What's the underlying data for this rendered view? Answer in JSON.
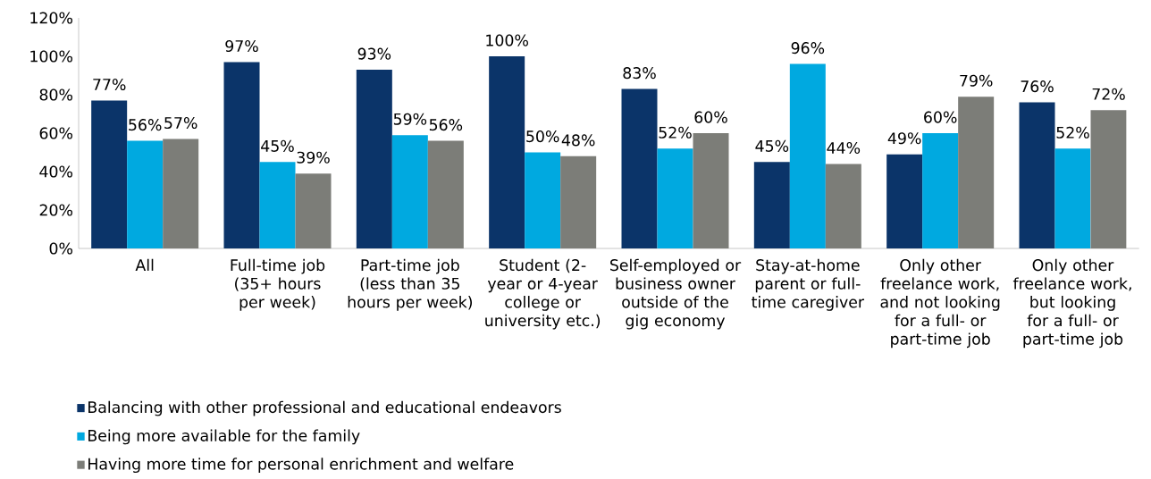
{
  "chart_data": {
    "type": "bar",
    "categories": [
      "All",
      "Full-time job (35+ hours per week)",
      "Part-time job (less than 35 hours per week)",
      "Student (2-year or 4-year college or university etc.)",
      "Self-employed or business owner outside of the gig economy",
      "Stay-at-home parent or full-time caregiver",
      "Only other freelance work, and not looking for a full- or part-time job",
      "Only other freelance work, but looking for a full- or part-time job"
    ],
    "series": [
      {
        "name": "Balancing with other professional and educational endeavors",
        "color": "#0b3469",
        "values": [
          77,
          97,
          93,
          100,
          83,
          45,
          49,
          76
        ],
        "value_labels": [
          "77%",
          "97%",
          "93%",
          "100%",
          "83%",
          "45%",
          "49%",
          "76%"
        ]
      },
      {
        "name": "Being more available for the family",
        "color": "#00a9e0",
        "values": [
          56,
          45,
          59,
          50,
          52,
          96,
          60,
          52
        ],
        "value_labels": [
          "56%",
          "45%",
          "59%",
          "50%",
          "52%",
          "96%",
          "60%",
          "52%"
        ]
      },
      {
        "name": "Having more time for personal enrichment and welfare",
        "color": "#7c7d78",
        "values": [
          57,
          39,
          56,
          48,
          60,
          44,
          79,
          72
        ],
        "value_labels": [
          "57%",
          "39%",
          "56%",
          "48%",
          "60%",
          "44%",
          "79%",
          "72%"
        ]
      }
    ],
    "ylim": [
      0,
      120
    ],
    "yticks": [
      {
        "value": 0,
        "label": "0%"
      },
      {
        "value": 20,
        "label": "20%"
      },
      {
        "value": 40,
        "label": "40%"
      },
      {
        "value": 60,
        "label": "60%"
      },
      {
        "value": 80,
        "label": "80%"
      },
      {
        "value": 100,
        "label": "100%"
      },
      {
        "value": 120,
        "label": "120%"
      }
    ],
    "legend": "bottom left"
  }
}
